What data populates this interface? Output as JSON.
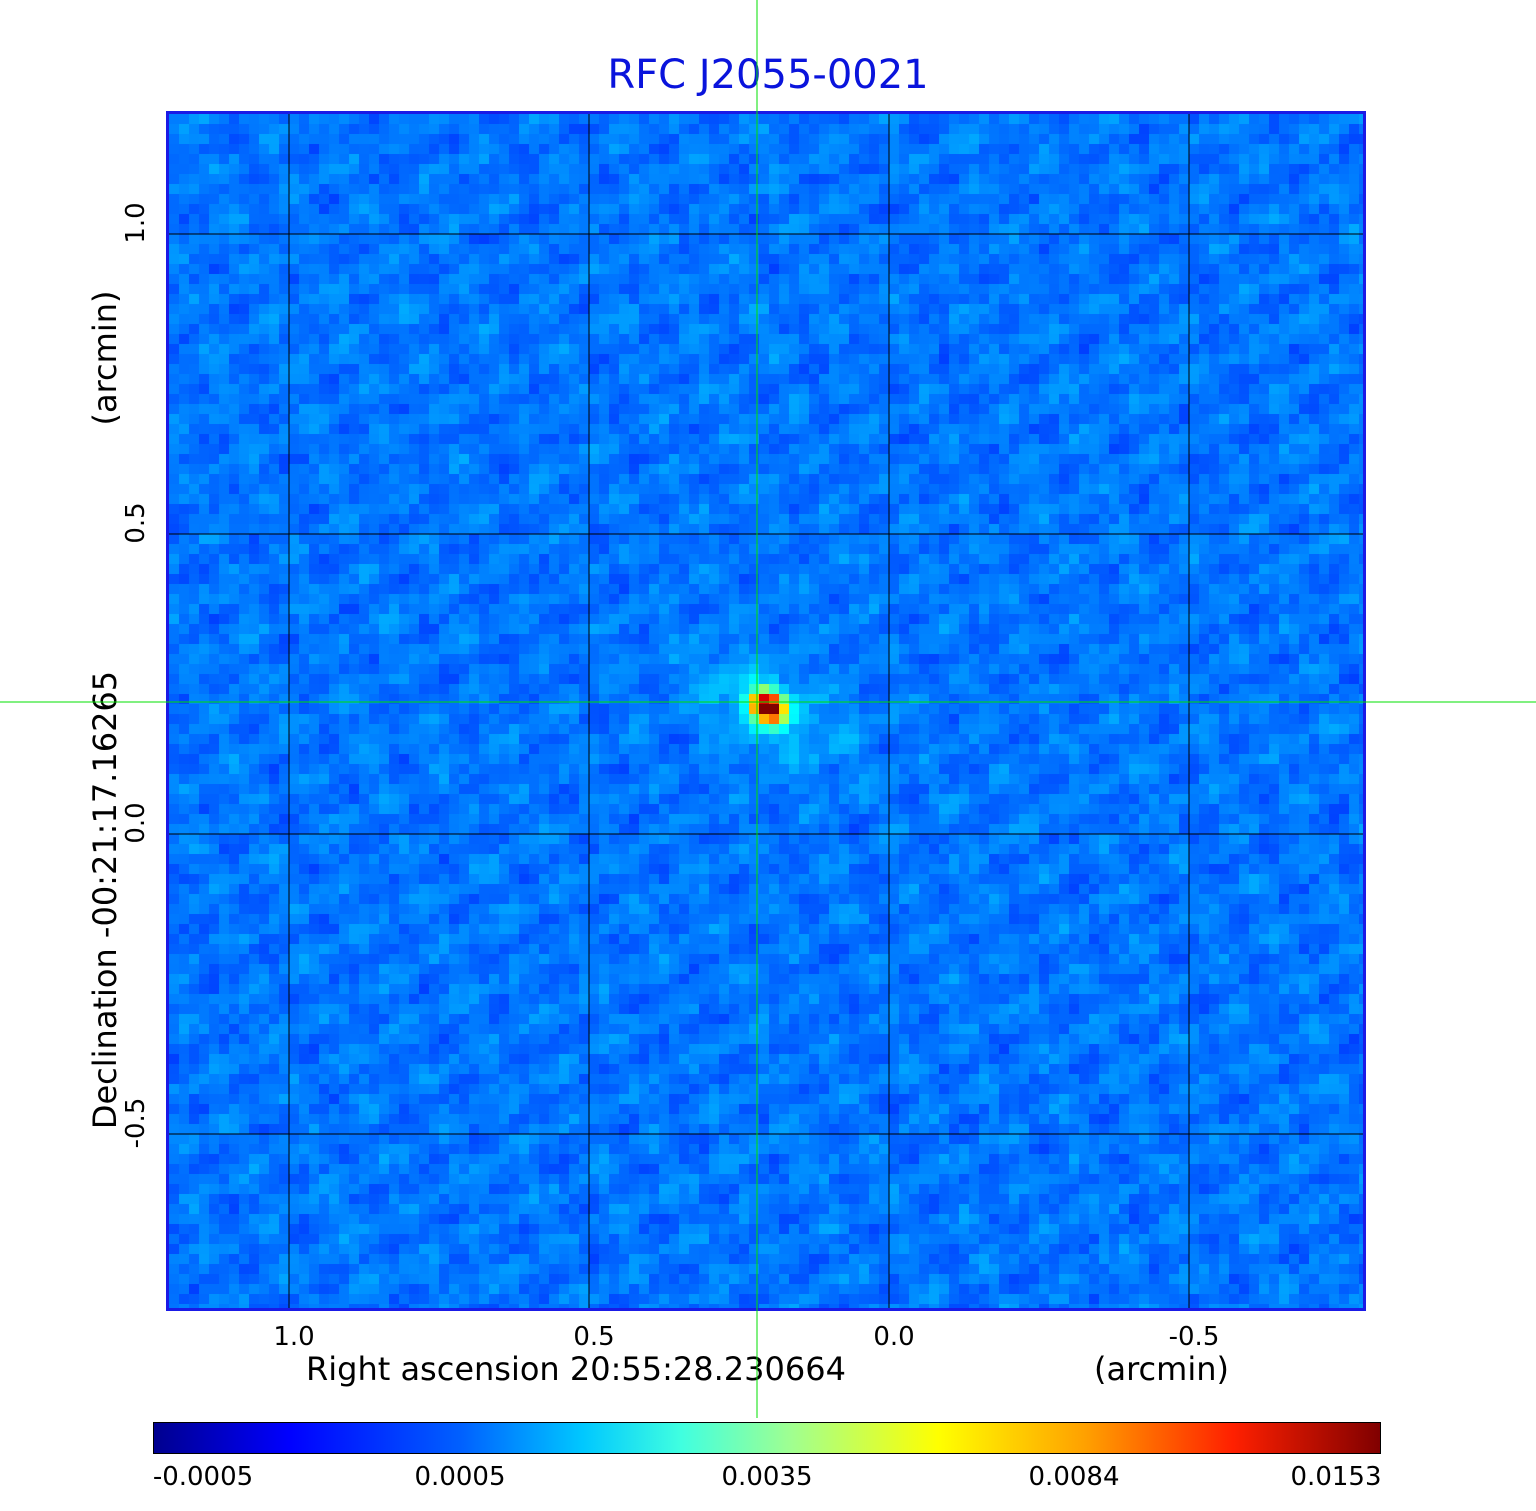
{
  "chart_data": {
    "type": "heatmap",
    "title": "RFC J2055-0021",
    "xlabel": "Right ascension  20:55:28.230664",
    "xunit": "(arcmin)",
    "ylabel": "Declination  -00:21:17.16265",
    "yunit": "(arcmin)",
    "xlim": [
      1.2,
      -0.8
    ],
    "ylim": [
      -0.8,
      1.2
    ],
    "xticks": [
      1.0,
      0.5,
      0.0,
      -0.5
    ],
    "yticks": [
      1.0,
      0.5,
      0.0,
      -0.5
    ],
    "xtick_labels": [
      "1.0",
      "0.5",
      "0.0",
      "-0.5"
    ],
    "ytick_labels": [
      "1.0",
      "0.5",
      "0.0",
      "-0.5"
    ],
    "grid": true,
    "colormap": "jet",
    "source_peak": {
      "x": 0.21,
      "y": 0.22,
      "value": 0.0153
    },
    "colorbar": {
      "ticks": [
        "-0.0005",
        "0.0005",
        "0.0035",
        "0.0084",
        "0.0153"
      ],
      "range": [
        -0.0005,
        0.0153
      ]
    },
    "crosshair": {
      "x": 0.215,
      "y": 0.215,
      "color": "#00e000"
    }
  }
}
